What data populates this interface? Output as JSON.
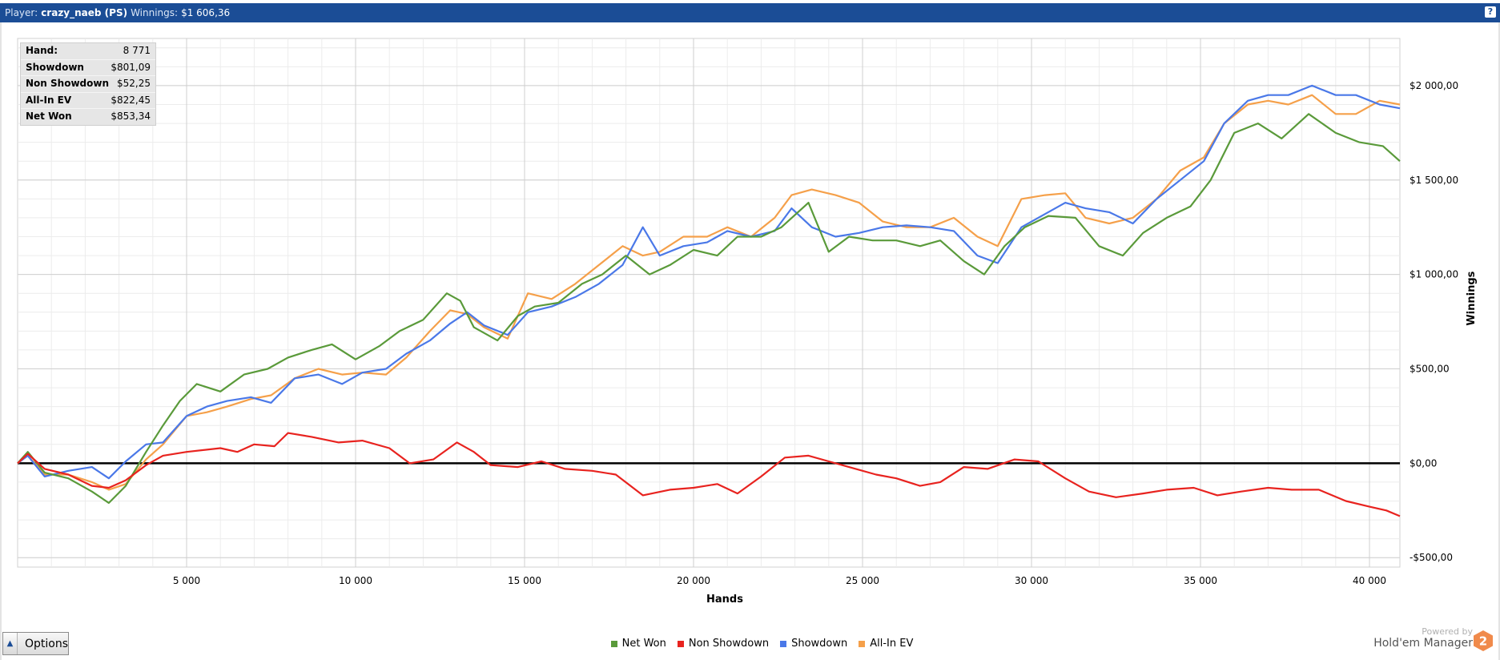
{
  "header": {
    "player_label": "Player:",
    "player_value": "crazy_naeb (PS)",
    "winnings_label": "Winnings:",
    "winnings_value": "$1 606,36",
    "help_label": "?"
  },
  "stats": [
    {
      "label": "Hand:",
      "value": "8 771"
    },
    {
      "label": "Showdown",
      "value": "$801,09"
    },
    {
      "label": "Non Showdown",
      "value": "$52,25"
    },
    {
      "label": "All-In EV",
      "value": "$822,45"
    },
    {
      "label": "Net Won",
      "value": "$853,34"
    }
  ],
  "options_label": "Options",
  "branding": {
    "powered_by": "Powered by",
    "name": "Hold'em Manager",
    "logo_text": "2"
  },
  "colors": {
    "net_won": "#5a9a3a",
    "non_showdown": "#e8231f",
    "showdown": "#4a78e8",
    "allin_ev": "#f5a04a",
    "header": "#1b4d96"
  },
  "chart_data": {
    "type": "line",
    "xlabel": "Hands",
    "ylabel": "Winnings",
    "xlim": [
      0,
      40900
    ],
    "ylim": [
      -550,
      2250
    ],
    "x_ticks": [
      5000,
      10000,
      15000,
      20000,
      25000,
      30000,
      35000,
      40000
    ],
    "x_tick_labels": [
      "5 000",
      "10 000",
      "15 000",
      "20 000",
      "25 000",
      "30 000",
      "35 000",
      "40 000"
    ],
    "y_ticks": [
      -500,
      0,
      500,
      1000,
      1500,
      2000
    ],
    "y_tick_labels": [
      "-$500,00",
      "$0,00",
      "$500,00",
      "$1 000,00",
      "$1 500,00",
      "$2 000,00"
    ],
    "grid": true,
    "legend_position": "bottom",
    "series": [
      {
        "name": "Net Won",
        "color_key": "net_won",
        "x": [
          0,
          300,
          800,
          1500,
          2200,
          2700,
          3200,
          3800,
          4300,
          4800,
          5300,
          6000,
          6700,
          7400,
          8000,
          8700,
          9300,
          10000,
          10700,
          11300,
          12000,
          12700,
          13100,
          13500,
          14200,
          14800,
          15300,
          16000,
          16700,
          17300,
          18000,
          18700,
          19300,
          20000,
          20700,
          21300,
          22000,
          22600,
          23400,
          24000,
          24600,
          25300,
          26000,
          26700,
          27300,
          28000,
          28600,
          29200,
          29800,
          30500,
          31300,
          32000,
          32700,
          33300,
          34000,
          34700,
          35300,
          36000,
          36700,
          37400,
          38200,
          39000,
          39700,
          40400,
          40900
        ],
        "y": [
          0,
          60,
          -50,
          -80,
          -150,
          -210,
          -120,
          60,
          200,
          330,
          420,
          380,
          470,
          500,
          560,
          600,
          630,
          550,
          620,
          700,
          760,
          900,
          860,
          720,
          650,
          780,
          830,
          850,
          950,
          1000,
          1100,
          1000,
          1050,
          1130,
          1100,
          1200,
          1200,
          1250,
          1380,
          1120,
          1200,
          1180,
          1180,
          1150,
          1180,
          1070,
          1000,
          1150,
          1250,
          1310,
          1300,
          1150,
          1100,
          1220,
          1300,
          1360,
          1500,
          1750,
          1800,
          1720,
          1850,
          1750,
          1700,
          1680,
          1600
        ]
      },
      {
        "name": "Non Showdown",
        "color_key": "non_showdown",
        "x": [
          0,
          300,
          800,
          1500,
          2200,
          2700,
          3200,
          3800,
          4300,
          5000,
          6000,
          6500,
          7000,
          7600,
          8000,
          8700,
          9500,
          10200,
          11000,
          11600,
          12300,
          13000,
          13500,
          14000,
          14800,
          15500,
          16200,
          17000,
          17700,
          18500,
          19300,
          20000,
          20700,
          21300,
          22000,
          22700,
          23400,
          24000,
          24800,
          25400,
          26000,
          26700,
          27300,
          28000,
          28700,
          29500,
          30200,
          31000,
          31700,
          32500,
          33300,
          34000,
          34800,
          35500,
          36200,
          37000,
          37700,
          38500,
          39300,
          40000,
          40500,
          40900
        ],
        "y": [
          0,
          50,
          -30,
          -60,
          -120,
          -130,
          -90,
          -10,
          40,
          60,
          80,
          60,
          100,
          90,
          160,
          140,
          110,
          120,
          80,
          0,
          20,
          110,
          60,
          -10,
          -20,
          10,
          -30,
          -40,
          -60,
          -170,
          -140,
          -130,
          -110,
          -160,
          -70,
          30,
          40,
          10,
          -30,
          -60,
          -80,
          -120,
          -100,
          -20,
          -30,
          20,
          10,
          -80,
          -150,
          -180,
          -160,
          -140,
          -130,
          -170,
          -150,
          -130,
          -140,
          -140,
          -200,
          -230,
          -250,
          -280
        ]
      },
      {
        "name": "Showdown",
        "color_key": "showdown",
        "x": [
          0,
          300,
          800,
          1500,
          2200,
          2700,
          3200,
          3800,
          4300,
          5000,
          5600,
          6200,
          6900,
          7500,
          8200,
          8900,
          9600,
          10200,
          10900,
          11500,
          12200,
          12800,
          13300,
          13800,
          14500,
          15100,
          15800,
          16500,
          17200,
          17900,
          18500,
          19000,
          19700,
          20400,
          21000,
          21700,
          22400,
          22900,
          23500,
          24200,
          24900,
          25600,
          26300,
          27000,
          27700,
          28400,
          29000,
          29700,
          30400,
          31000,
          31600,
          32300,
          33000,
          33700,
          34400,
          35100,
          35700,
          36400,
          37000,
          37600,
          38300,
          39000,
          39600,
          40300,
          40900
        ],
        "y": [
          0,
          40,
          -70,
          -40,
          -20,
          -80,
          10,
          100,
          110,
          250,
          300,
          330,
          350,
          320,
          450,
          470,
          420,
          480,
          500,
          580,
          650,
          740,
          800,
          730,
          680,
          800,
          830,
          880,
          950,
          1050,
          1250,
          1100,
          1150,
          1170,
          1230,
          1200,
          1230,
          1350,
          1250,
          1200,
          1220,
          1250,
          1260,
          1250,
          1230,
          1100,
          1060,
          1250,
          1320,
          1380,
          1350,
          1330,
          1270,
          1400,
          1500,
          1600,
          1800,
          1920,
          1950,
          1950,
          2000,
          1950,
          1950,
          1900,
          1880
        ]
      },
      {
        "name": "All-In EV",
        "color_key": "allin_ev",
        "x": [
          0,
          300,
          800,
          1500,
          2200,
          2700,
          3200,
          3800,
          4300,
          5000,
          5600,
          6200,
          6900,
          7500,
          8200,
          8900,
          9600,
          10200,
          10900,
          11500,
          12200,
          12800,
          13300,
          13800,
          14500,
          15100,
          15800,
          16500,
          17200,
          17900,
          18500,
          19000,
          19700,
          20400,
          21000,
          21700,
          22400,
          22900,
          23500,
          24200,
          24900,
          25600,
          26300,
          27000,
          27700,
          28400,
          29000,
          29700,
          30400,
          31000,
          31600,
          32300,
          33000,
          33700,
          34400,
          35100,
          35700,
          36400,
          37000,
          37600,
          38300,
          39000,
          39600,
          40300,
          40900
        ],
        "y": [
          0,
          40,
          -60,
          -60,
          -100,
          -140,
          -110,
          20,
          100,
          250,
          270,
          300,
          340,
          360,
          450,
          500,
          470,
          480,
          470,
          560,
          700,
          810,
          790,
          720,
          660,
          900,
          870,
          950,
          1050,
          1150,
          1100,
          1120,
          1200,
          1200,
          1250,
          1200,
          1300,
          1420,
          1450,
          1420,
          1380,
          1280,
          1250,
          1250,
          1300,
          1200,
          1150,
          1400,
          1420,
          1430,
          1300,
          1270,
          1300,
          1400,
          1550,
          1620,
          1800,
          1900,
          1920,
          1900,
          1950,
          1850,
          1850,
          1920,
          1900
        ]
      }
    ]
  },
  "legend": [
    {
      "label": "Net Won",
      "color_key": "net_won"
    },
    {
      "label": "Non Showdown",
      "color_key": "non_showdown"
    },
    {
      "label": "Showdown",
      "color_key": "showdown"
    },
    {
      "label": "All-In EV",
      "color_key": "allin_ev"
    }
  ]
}
